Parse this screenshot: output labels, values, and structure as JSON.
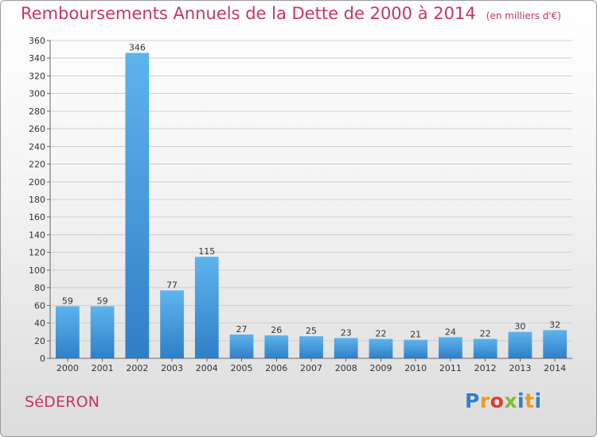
{
  "title": "Remboursements Annuels de la Dette de 2000 à 2014",
  "unit": "(en milliers d'€)",
  "commune": "SéDERON",
  "logo": {
    "letters": [
      "P",
      "r",
      "o",
      "x",
      "i",
      "t",
      "i"
    ],
    "colors": [
      "#2f7fc8",
      "#f29a1e",
      "#e23a3a",
      "#7cbf2f",
      "#2f7fc8",
      "#f29a1e",
      "#2f7fc8"
    ]
  },
  "colors": {
    "title": "#c8336b",
    "bar_top": "#5db4ec",
    "bar_bottom": "#2f7fc8"
  },
  "chart_data": {
    "type": "bar",
    "title": "Remboursements Annuels de la Dette de 2000 à 2014",
    "subtitle": "(en milliers d'€)",
    "categories": [
      "2000",
      "2001",
      "2002",
      "2003",
      "2004",
      "2005",
      "2006",
      "2007",
      "2008",
      "2009",
      "2010",
      "2011",
      "2012",
      "2013",
      "2014"
    ],
    "values": [
      59,
      59,
      346,
      77,
      115,
      27,
      26,
      25,
      23,
      22,
      21,
      24,
      22,
      30,
      32
    ],
    "ylim": [
      0,
      360
    ],
    "yticks": [
      0,
      20,
      40,
      60,
      80,
      100,
      120,
      140,
      160,
      180,
      200,
      220,
      240,
      260,
      280,
      300,
      320,
      340,
      360
    ],
    "grid": true,
    "legend": "none"
  }
}
